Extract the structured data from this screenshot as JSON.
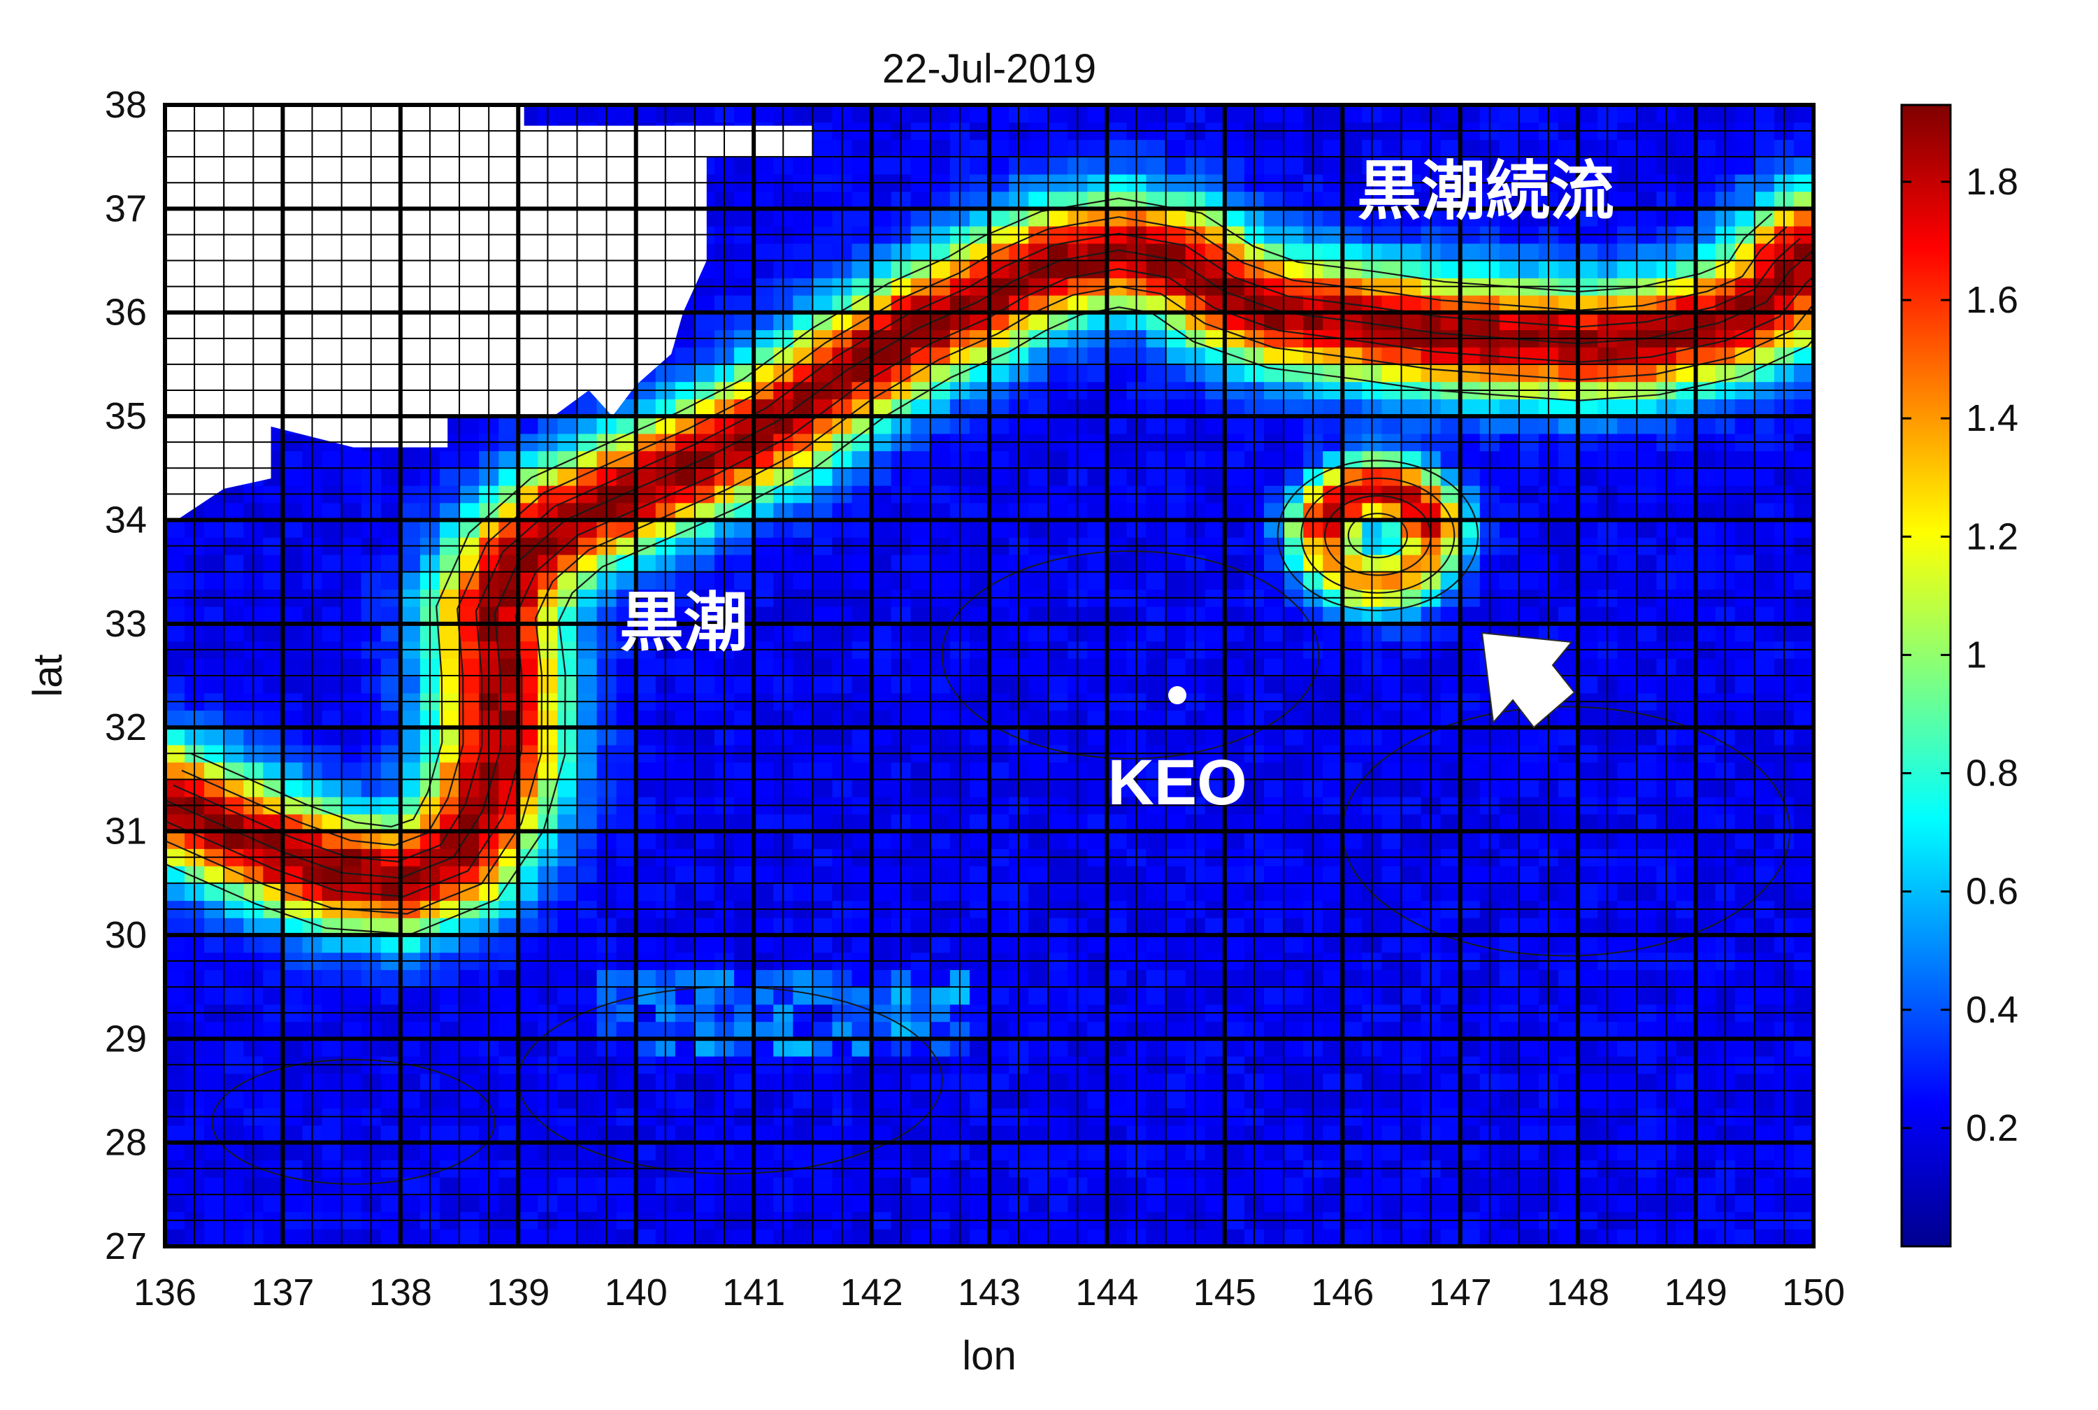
{
  "chart_data": {
    "type": "heatmap",
    "title": "22-Jul-2019",
    "xlabel": "lon",
    "ylabel": "lat",
    "xlim": [
      136,
      150
    ],
    "ylim": [
      27,
      38
    ],
    "x_ticks": [
      "136",
      "137",
      "138",
      "139",
      "140",
      "141",
      "142",
      "143",
      "144",
      "145",
      "146",
      "147",
      "148",
      "149",
      "150"
    ],
    "y_ticks": [
      "27",
      "28",
      "29",
      "30",
      "31",
      "32",
      "33",
      "34",
      "35",
      "36",
      "37",
      "38"
    ],
    "colormap": "jet",
    "colorbar": {
      "range": [
        0,
        1.93
      ],
      "ticks": [
        "0.2",
        "0.4",
        "0.6",
        "0.8",
        "1",
        "1.2",
        "1.4",
        "1.6",
        "1.8"
      ]
    },
    "grid": "on",
    "land_color": "#ffffff",
    "current_paths": [
      {
        "name": "kuroshio",
        "width": 0.4,
        "peak": 1.8,
        "points": [
          [
            136.0,
            31.3
          ],
          [
            136.5,
            31.05
          ],
          [
            137.0,
            30.8
          ],
          [
            137.5,
            30.6
          ],
          [
            138.0,
            30.55
          ],
          [
            138.45,
            30.75
          ],
          [
            138.7,
            31.2
          ],
          [
            138.85,
            31.8
          ],
          [
            138.85,
            32.5
          ],
          [
            138.8,
            33.1
          ],
          [
            139.0,
            33.6
          ],
          [
            139.4,
            34.0
          ],
          [
            140.0,
            34.3
          ],
          [
            140.6,
            34.6
          ],
          [
            141.2,
            34.95
          ],
          [
            141.8,
            35.45
          ],
          [
            142.4,
            35.85
          ],
          [
            142.9,
            36.1
          ],
          [
            143.2,
            36.3
          ],
          [
            143.6,
            36.5
          ],
          [
            144.1,
            36.6
          ],
          [
            144.6,
            36.5
          ],
          [
            145.0,
            36.2
          ],
          [
            145.5,
            36.0
          ],
          [
            146.2,
            35.9
          ],
          [
            146.8,
            35.8
          ],
          [
            147.4,
            35.75
          ],
          [
            148.0,
            35.7
          ],
          [
            148.6,
            35.75
          ],
          [
            149.2,
            35.9
          ],
          [
            149.6,
            36.1
          ],
          [
            149.8,
            36.4
          ],
          [
            150.0,
            36.6
          ]
        ]
      }
    ],
    "eddy": {
      "center": [
        146.3,
        33.85
      ],
      "radius": 0.45,
      "width": 0.22,
      "peak": 1.6
    },
    "station": {
      "name": "KEO",
      "lon": 144.6,
      "lat": 32.4
    }
  },
  "annotations": {
    "kuroshio": "黒潮",
    "kuroshio_extension": "黒潮続流",
    "station_label": "KEO"
  }
}
